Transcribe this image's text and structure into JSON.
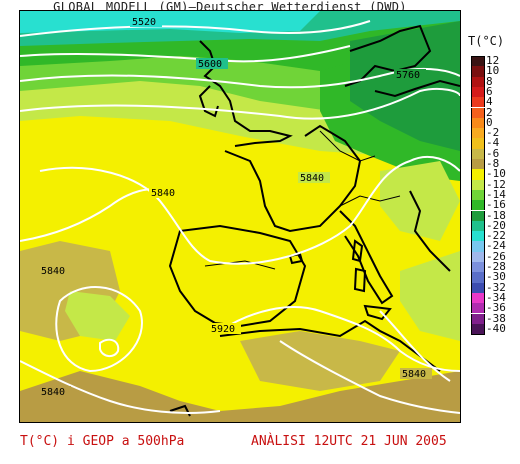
{
  "title": "GLOBAL MODELL (GM)—Deutscher Wetterdienst (DWD)",
  "legend": {
    "title": "T(°C)",
    "entries": [
      {
        "label": "12",
        "color": "#3a1414"
      },
      {
        "label": "10",
        "color": "#7a1010"
      },
      {
        "label": "8",
        "color": "#b01212"
      },
      {
        "label": "6",
        "color": "#d41a1a"
      },
      {
        "label": "4",
        "color": "#ec3a1e"
      },
      {
        "label": "2",
        "color": "#f4601c"
      },
      {
        "label": "0",
        "color": "#f88a1a"
      },
      {
        "label": "-2",
        "color": "#f8aa20"
      },
      {
        "label": "-4",
        "color": "#f0c01c"
      },
      {
        "label": "-6",
        "color": "#c8b848"
      },
      {
        "label": "-8",
        "color": "#b89c44"
      },
      {
        "label": "-10",
        "color": "#f4f000"
      },
      {
        "label": "-12",
        "color": "#c4e848"
      },
      {
        "label": "-14",
        "color": "#70d438"
      },
      {
        "label": "-16",
        "color": "#30b828"
      },
      {
        "label": "-18",
        "color": "#1e9c3c"
      },
      {
        "label": "-20",
        "color": "#20c08c"
      },
      {
        "label": "-22",
        "color": "#28e0d0"
      },
      {
        "label": "-24",
        "color": "#78c8f0"
      },
      {
        "label": "-26",
        "color": "#a0b8ec"
      },
      {
        "label": "-28",
        "color": "#7c90dc"
      },
      {
        "label": "-30",
        "color": "#5a6ec8"
      },
      {
        "label": "-32",
        "color": "#3c4cb0"
      },
      {
        "label": "-34",
        "color": "#e838c8"
      },
      {
        "label": "-36",
        "color": "#b02cb0"
      },
      {
        "label": "-38",
        "color": "#80208c"
      },
      {
        "label": "-40",
        "color": "#4a1458"
      }
    ]
  },
  "contour_labels": {
    "c5520": "5520",
    "c5600": "5600",
    "c5760": "5760",
    "c5840_center": "5840",
    "c5840_west": "5840",
    "c5840_france": "5840",
    "c5840_southwest": "5840",
    "c5840_east": "5840",
    "c5920": "5920"
  },
  "footer": {
    "left": "T(°C) i GEOP a 500hPa",
    "right": "ANÀLISI 12UTC 21 JUN 2005"
  },
  "colors": {
    "footer_text": "#c81010",
    "ocean_cyan": "#28e0d0",
    "green_dark": "#1e9c3c",
    "green_mid": "#30b828",
    "green_light": "#70d438",
    "yellow_green": "#c4e848",
    "yellow": "#f4f000",
    "olive": "#b89c44",
    "contour": "#ffffff",
    "coast": "#000000"
  }
}
